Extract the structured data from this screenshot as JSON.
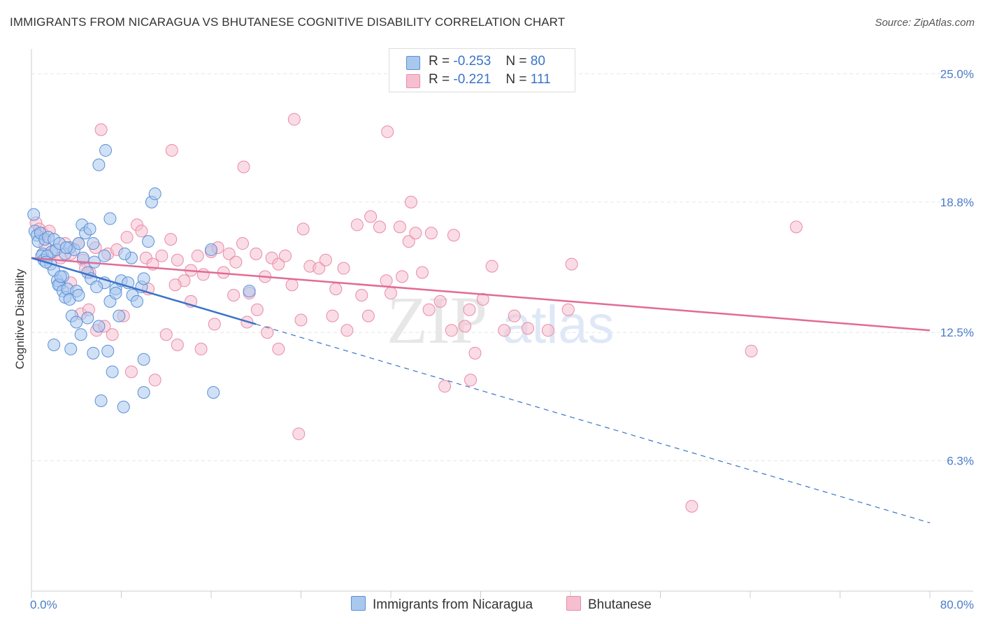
{
  "title": "IMMIGRANTS FROM NICARAGUA VS BHUTANESE COGNITIVE DISABILITY CORRELATION CHART",
  "source": "Source: ZipAtlas.com",
  "watermark": {
    "zip": "ZIP",
    "atlas": "atlas"
  },
  "legend": {
    "rows": [
      {
        "r_label": "R =",
        "r_value": "-0.253",
        "n_label": "N =",
        "n_value": "80"
      },
      {
        "r_label": "R =",
        "r_value": "-0.221",
        "n_label": "N =",
        "n_value": "111"
      }
    ]
  },
  "bottom_legend": [
    "Immigrants from Nicaragua",
    "Bhutanese"
  ],
  "colors": {
    "nicaragua_fill": "#a9c8ee",
    "nicaragua_stroke": "#5b8fd6",
    "nicaragua_line": "#3a73c9",
    "bhutanese_fill": "#f6bfd0",
    "bhutanese_stroke": "#e88aaa",
    "bhutanese_line": "#e26b95",
    "tick": "#4a7cc9",
    "grid": "#e6e6e6"
  },
  "chart_data": {
    "type": "scatter",
    "title": "IMMIGRANTS FROM NICARAGUA VS BHUTANESE COGNITIVE DISABILITY CORRELATION CHART",
    "xlabel": "",
    "ylabel": "Cognitive Disability",
    "xlim": [
      0,
      80
    ],
    "ylim": [
      0,
      26.2
    ],
    "x_tick_labels": [
      "0.0%",
      "80.0%"
    ],
    "y_ticks": [
      6.3,
      12.5,
      18.8,
      25.0
    ],
    "y_tick_labels": [
      "6.3%",
      "12.5%",
      "18.8%",
      "25.0%"
    ],
    "grid": "horizontal dashed",
    "legend_placement": "top-center",
    "series": [
      {
        "name": "Immigrants from Nicaragua",
        "r": -0.253,
        "n": 80,
        "trend": {
          "x0": 0,
          "y0": 16.1,
          "x1": 20,
          "y1": 12.9,
          "dashed_to_x": 80,
          "dashed_to_y": 3.3
        },
        "points": [
          [
            0.2,
            18.2
          ],
          [
            0.3,
            17.4
          ],
          [
            0.5,
            17.2
          ],
          [
            0.6,
            16.9
          ],
          [
            0.8,
            17.3
          ],
          [
            1.0,
            16.3
          ],
          [
            1.2,
            17.0
          ],
          [
            1.5,
            17.1
          ],
          [
            1.8,
            16.4
          ],
          [
            2.0,
            17.0
          ],
          [
            2.2,
            16.5
          ],
          [
            0.9,
            16.2
          ],
          [
            1.1,
            16.0
          ],
          [
            1.4,
            16.2
          ],
          [
            1.7,
            15.8
          ],
          [
            2.0,
            15.5
          ],
          [
            2.3,
            15.0
          ],
          [
            2.5,
            14.8
          ],
          [
            2.8,
            15.2
          ],
          [
            2.5,
            16.8
          ],
          [
            3.0,
            16.3
          ],
          [
            3.4,
            16.6
          ],
          [
            3.8,
            16.5
          ],
          [
            4.2,
            16.8
          ],
          [
            4.5,
            17.7
          ],
          [
            4.8,
            17.3
          ],
          [
            5.2,
            17.5
          ],
          [
            5.5,
            16.8
          ],
          [
            5.0,
            15.4
          ],
          [
            5.3,
            15.1
          ],
          [
            5.6,
            15.9
          ],
          [
            2.4,
            14.8
          ],
          [
            2.8,
            14.5
          ],
          [
            3.0,
            14.2
          ],
          [
            3.2,
            14.6
          ],
          [
            3.4,
            14.1
          ],
          [
            4.0,
            14.5
          ],
          [
            4.2,
            14.3
          ],
          [
            3.6,
            13.3
          ],
          [
            4.0,
            13.0
          ],
          [
            4.4,
            12.4
          ],
          [
            5.0,
            13.2
          ],
          [
            6.0,
            12.8
          ],
          [
            6.5,
            14.9
          ],
          [
            7.0,
            18.0
          ],
          [
            6.0,
            20.6
          ],
          [
            6.6,
            21.3
          ],
          [
            6.5,
            16.2
          ],
          [
            7.0,
            14.0
          ],
          [
            7.5,
            14.6
          ],
          [
            8.0,
            15.0
          ],
          [
            7.8,
            13.3
          ],
          [
            7.5,
            14.4
          ],
          [
            8.6,
            14.9
          ],
          [
            8.9,
            16.1
          ],
          [
            9.0,
            14.3
          ],
          [
            9.4,
            14.0
          ],
          [
            9.8,
            14.7
          ],
          [
            10.0,
            15.1
          ],
          [
            10.7,
            18.8
          ],
          [
            11.0,
            19.2
          ],
          [
            2.0,
            11.9
          ],
          [
            3.5,
            11.7
          ],
          [
            5.5,
            11.5
          ],
          [
            6.8,
            11.6
          ],
          [
            7.2,
            10.6
          ],
          [
            10.0,
            11.2
          ],
          [
            6.2,
            9.2
          ],
          [
            8.2,
            8.9
          ],
          [
            10.0,
            9.6
          ],
          [
            16.2,
            9.6
          ],
          [
            16.0,
            16.5
          ],
          [
            19.4,
            14.5
          ],
          [
            10.4,
            16.9
          ],
          [
            3.1,
            16.6
          ],
          [
            1.3,
            15.9
          ],
          [
            2.6,
            15.2
          ],
          [
            4.6,
            16.1
          ],
          [
            5.8,
            14.7
          ],
          [
            8.3,
            16.3
          ]
        ]
      },
      {
        "name": "Bhutanese",
        "r": -0.221,
        "n": 111,
        "trend": {
          "x0": 0,
          "y0": 16.1,
          "x1": 80,
          "y1": 12.6
        },
        "points": [
          [
            0.4,
            17.8
          ],
          [
            0.7,
            17.5
          ],
          [
            1.0,
            17.3
          ],
          [
            1.2,
            16.7
          ],
          [
            2.0,
            16.4
          ],
          [
            3.0,
            16.8
          ],
          [
            3.5,
            16.3
          ],
          [
            4.2,
            16.8
          ],
          [
            4.6,
            16.0
          ],
          [
            5.2,
            15.4
          ],
          [
            5.7,
            16.6
          ],
          [
            6.8,
            16.3
          ],
          [
            7.6,
            16.5
          ],
          [
            8.5,
            17.1
          ],
          [
            9.4,
            17.7
          ],
          [
            9.8,
            17.4
          ],
          [
            10.2,
            16.1
          ],
          [
            10.8,
            15.8
          ],
          [
            11.6,
            16.2
          ],
          [
            12.4,
            17.0
          ],
          [
            13.0,
            16.0
          ],
          [
            13.6,
            15.0
          ],
          [
            14.2,
            15.5
          ],
          [
            14.8,
            16.2
          ],
          [
            15.3,
            15.3
          ],
          [
            16.0,
            16.4
          ],
          [
            16.6,
            16.6
          ],
          [
            17.1,
            15.4
          ],
          [
            17.6,
            16.3
          ],
          [
            18.2,
            15.9
          ],
          [
            18.8,
            16.8
          ],
          [
            19.4,
            14.4
          ],
          [
            20.0,
            16.3
          ],
          [
            20.8,
            15.2
          ],
          [
            21.4,
            16.1
          ],
          [
            22.0,
            15.8
          ],
          [
            22.6,
            16.2
          ],
          [
            23.2,
            14.8
          ],
          [
            24.2,
            17.5
          ],
          [
            24.8,
            15.7
          ],
          [
            25.6,
            15.6
          ],
          [
            26.2,
            16.0
          ],
          [
            27.1,
            14.6
          ],
          [
            27.8,
            15.6
          ],
          [
            29.0,
            17.7
          ],
          [
            29.4,
            14.3
          ],
          [
            30.2,
            18.1
          ],
          [
            31.0,
            17.6
          ],
          [
            31.6,
            15.0
          ],
          [
            32.0,
            14.4
          ],
          [
            32.8,
            17.6
          ],
          [
            33.6,
            16.9
          ],
          [
            34.2,
            17.3
          ],
          [
            34.8,
            15.4
          ],
          [
            35.6,
            17.3
          ],
          [
            36.4,
            14.0
          ],
          [
            37.6,
            17.2
          ],
          [
            39.0,
            13.6
          ],
          [
            40.2,
            14.1
          ],
          [
            41.0,
            15.7
          ],
          [
            42.1,
            12.6
          ],
          [
            43.0,
            13.3
          ],
          [
            44.2,
            12.7
          ],
          [
            46.0,
            12.6
          ],
          [
            47.8,
            13.6
          ],
          [
            48.1,
            15.8
          ],
          [
            3.5,
            14.9
          ],
          [
            4.4,
            13.4
          ],
          [
            5.1,
            13.6
          ],
          [
            5.8,
            12.6
          ],
          [
            6.5,
            12.8
          ],
          [
            7.2,
            12.4
          ],
          [
            8.2,
            13.3
          ],
          [
            10.4,
            14.6
          ],
          [
            12.0,
            12.4
          ],
          [
            13.0,
            11.9
          ],
          [
            14.2,
            14.0
          ],
          [
            15.1,
            11.7
          ],
          [
            16.3,
            12.9
          ],
          [
            18.0,
            14.3
          ],
          [
            19.2,
            13.0
          ],
          [
            20.1,
            13.6
          ],
          [
            21.0,
            12.5
          ],
          [
            22.0,
            11.7
          ],
          [
            24.0,
            13.1
          ],
          [
            26.8,
            13.3
          ],
          [
            28.1,
            12.6
          ],
          [
            30.0,
            13.3
          ],
          [
            33.0,
            15.2
          ],
          [
            35.4,
            13.6
          ],
          [
            37.4,
            12.6
          ],
          [
            38.6,
            12.8
          ],
          [
            39.5,
            11.5
          ],
          [
            36.8,
            9.9
          ],
          [
            39.1,
            10.2
          ],
          [
            6.2,
            22.3
          ],
          [
            12.5,
            21.3
          ],
          [
            18.9,
            20.5
          ],
          [
            23.4,
            22.8
          ],
          [
            31.7,
            22.2
          ],
          [
            33.8,
            18.8
          ],
          [
            68.1,
            17.6
          ],
          [
            64.1,
            11.6
          ],
          [
            58.8,
            4.1
          ],
          [
            23.8,
            7.6
          ],
          [
            8.9,
            10.6
          ],
          [
            11.0,
            10.2
          ],
          [
            1.6,
            17.4
          ],
          [
            2.6,
            16.1
          ],
          [
            4.8,
            15.6
          ],
          [
            12.8,
            14.8
          ]
        ]
      }
    ]
  }
}
